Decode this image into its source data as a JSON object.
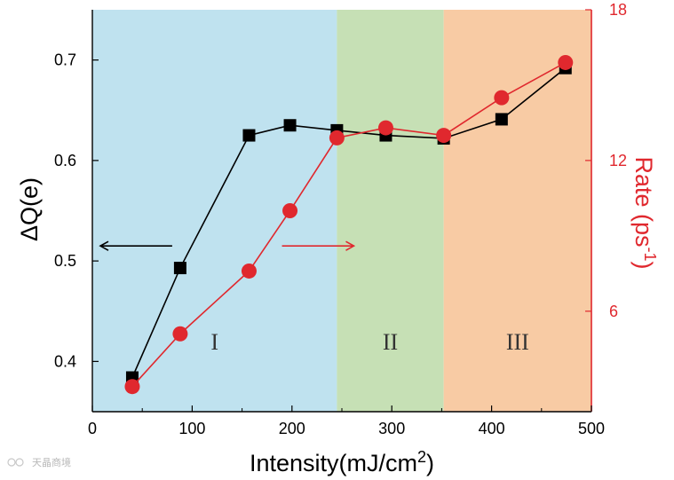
{
  "watermark": "天晶商境",
  "chart_data": {
    "type": "line",
    "xlabel": "Intensity(mJ/cm",
    "xlabel_sup": "2",
    "xlabel_close": ")",
    "ylabel_left": "ΔQ(e)",
    "ylabel_right": "Rate (ps",
    "ylabel_right_sup": "-1",
    "ylabel_right_close": ")",
    "xlim": [
      0,
      500
    ],
    "ylim_left": [
      0.35,
      0.75
    ],
    "ylim_right": [
      2,
      18
    ],
    "x_ticks": [
      0,
      100,
      200,
      300,
      400,
      500
    ],
    "y_left_ticks": [
      0.4,
      0.5,
      0.6,
      0.7
    ],
    "y_right_ticks": [
      6,
      12,
      18
    ],
    "regions": [
      {
        "label": "I",
        "x_start": 0,
        "x_end": 245,
        "color": "#bfe2ef"
      },
      {
        "label": "II",
        "x_start": 245,
        "x_end": 352,
        "color": "#c6e0b5"
      },
      {
        "label": "III",
        "x_start": 352,
        "x_end": 500,
        "color": "#f8cba4"
      }
    ],
    "series": [
      {
        "axis": "left",
        "marker": "square",
        "color": "#000000",
        "x": [
          40,
          88,
          157,
          198,
          245,
          294,
          352,
          410,
          474
        ],
        "values": [
          0.384,
          0.493,
          0.625,
          0.635,
          0.63,
          0.625,
          0.622,
          0.641,
          0.692
        ]
      },
      {
        "axis": "right",
        "marker": "circle",
        "color": "#e0282e",
        "x": [
          40,
          88,
          157,
          198,
          245,
          294,
          352,
          410,
          474
        ],
        "values": [
          3.0,
          5.1,
          7.6,
          10.0,
          12.9,
          13.3,
          13.0,
          14.5,
          15.9
        ]
      }
    ],
    "arrows": [
      {
        "direction": "left",
        "axis": "left",
        "x_from": 80,
        "x_to": 8,
        "y": 0.515,
        "color": "#000000"
      },
      {
        "direction": "right",
        "axis": "left",
        "x_from": 190,
        "x_to": 262,
        "y": 0.515,
        "color": "#e0282e"
      }
    ]
  }
}
